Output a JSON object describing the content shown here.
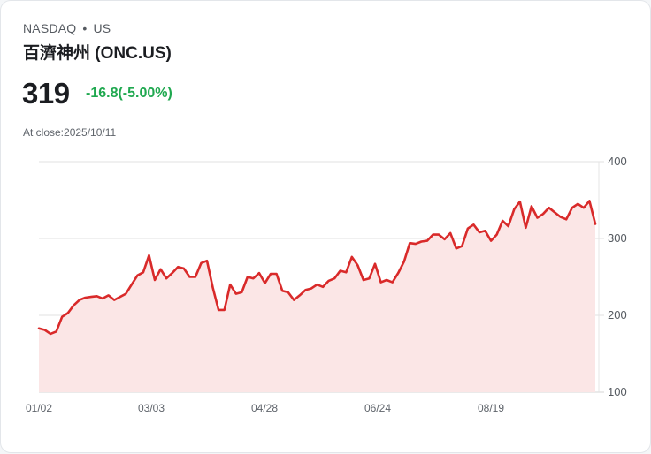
{
  "header": {
    "exchange": "NASDAQ",
    "separator": "•",
    "region": "US",
    "title": "百濟神州 (ONC.US)",
    "price": "319",
    "change": "-16.8(-5.00%)",
    "close_label": "At close:2025/10/11"
  },
  "colors": {
    "line": "#d92a2a",
    "fill": "#fbe6e6",
    "change_positive_text": "#1fa84f",
    "grid": "#e0e0e0"
  },
  "chart_data": {
    "type": "area",
    "title": "百濟神州 (ONC.US)",
    "xlabel": "",
    "ylabel": "",
    "ylim": [
      100,
      400
    ],
    "yticks": [
      400,
      300,
      200,
      100
    ],
    "xtick_labels": [
      "01/02",
      "03/03",
      "04/28",
      "06/24",
      "08/19"
    ],
    "grid": true,
    "legend": null,
    "series": [
      {
        "name": "ONC.US close",
        "values": [
          183,
          181,
          176,
          179,
          198,
          203,
          213,
          220,
          223,
          224,
          225,
          222,
          226,
          220,
          224,
          228,
          240,
          252,
          256,
          278,
          246,
          260,
          248,
          255,
          263,
          261,
          250,
          250,
          268,
          271,
          236,
          207,
          207,
          240,
          228,
          230,
          250,
          248,
          255,
          242,
          254,
          254,
          232,
          230,
          220,
          226,
          233,
          235,
          240,
          237,
          245,
          248,
          258,
          256,
          276,
          265,
          246,
          248,
          267,
          243,
          246,
          243,
          255,
          270,
          294,
          293,
          296,
          297,
          305,
          305,
          299,
          307,
          287,
          290,
          313,
          318,
          308,
          310,
          297,
          305,
          323,
          316,
          338,
          348,
          314,
          342,
          327,
          332,
          340,
          334,
          328,
          325,
          340,
          345,
          340,
          349,
          319
        ]
      }
    ]
  }
}
